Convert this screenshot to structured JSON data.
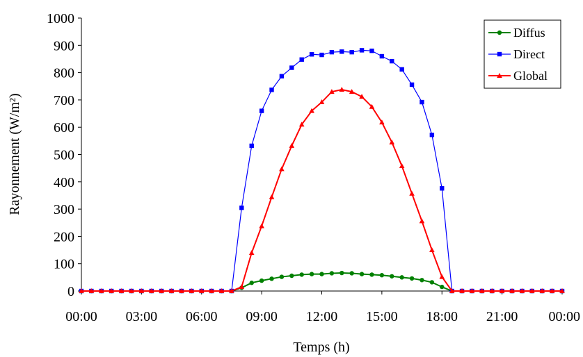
{
  "chart_data": {
    "type": "line",
    "xlabel": "Temps (h)",
    "ylabel": "Rayonnement (W/m²)",
    "xlim": [
      0,
      24
    ],
    "ylim": [
      0,
      1000
    ],
    "y_ticks": [
      "0",
      "100",
      "200",
      "300",
      "400",
      "500",
      "600",
      "700",
      "800",
      "900",
      "1000"
    ],
    "x_ticks": [
      "00:00",
      "03:00",
      "06:00",
      "09:00",
      "12:00",
      "15:00",
      "18:00",
      "21:00",
      "00:00"
    ],
    "grid": false,
    "legend_position": "top-right",
    "x_step_hours": 0.5,
    "series": [
      {
        "name": "Diffus",
        "color": "#008000",
        "marker": "circle",
        "values": [
          0,
          0,
          0,
          0,
          0,
          0,
          0,
          0,
          0,
          0,
          0,
          0,
          0,
          0,
          0,
          0,
          12,
          30,
          38,
          45,
          52,
          56,
          60,
          62,
          62,
          65,
          66,
          65,
          62,
          60,
          58,
          54,
          50,
          46,
          40,
          32,
          15,
          0,
          0,
          0,
          0,
          0,
          0,
          0,
          0,
          0,
          0,
          0,
          0
        ]
      },
      {
        "name": "Direct",
        "color": "#0000FF",
        "marker": "square",
        "values": [
          0,
          0,
          0,
          0,
          0,
          0,
          0,
          0,
          0,
          0,
          0,
          0,
          0,
          0,
          0,
          0,
          305,
          532,
          660,
          737,
          787,
          818,
          848,
          867,
          865,
          875,
          877,
          875,
          882,
          880,
          860,
          842,
          812,
          756,
          692,
          572,
          376,
          0,
          0,
          0,
          0,
          0,
          0,
          0,
          0,
          0,
          0,
          0,
          0
        ]
      },
      {
        "name": "Global",
        "color": "#FF0000",
        "marker": "triangle",
        "values": [
          0,
          0,
          0,
          0,
          0,
          0,
          0,
          0,
          0,
          0,
          0,
          0,
          0,
          0,
          0,
          0,
          15,
          140,
          238,
          344,
          447,
          532,
          610,
          660,
          692,
          730,
          738,
          730,
          712,
          675,
          618,
          545,
          458,
          357,
          256,
          150,
          52,
          0,
          0,
          0,
          0,
          0,
          0,
          0,
          0,
          0,
          0,
          0,
          0
        ]
      }
    ]
  }
}
